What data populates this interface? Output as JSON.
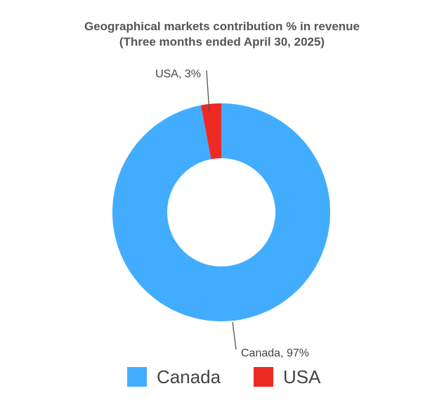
{
  "chart_data": {
    "type": "pie",
    "donut": true,
    "title": "Geographical markets contribution  % in revenue",
    "subtitle": "(Three months ended April 30, 2025)",
    "series": [
      {
        "name": "Canada",
        "value": 97,
        "label": "Canada, 97%",
        "color": "#42adff"
      },
      {
        "name": "USA",
        "value": 3,
        "label": "USA, 3%",
        "color": "#ee2a24"
      }
    ],
    "legend": {
      "position": "bottom",
      "items": [
        {
          "label": "Canada",
          "color": "#42adff"
        },
        {
          "label": "USA",
          "color": "#ee2a24"
        }
      ]
    }
  }
}
